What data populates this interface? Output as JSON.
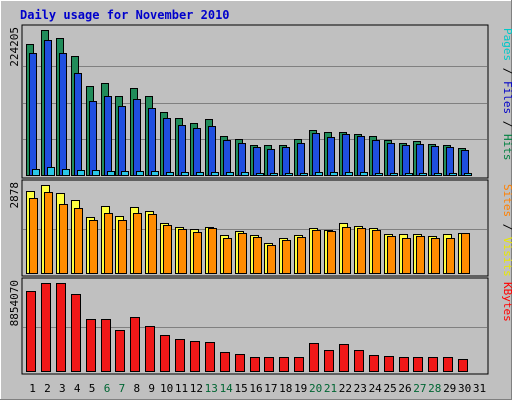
{
  "chart_data": {
    "type": "bar",
    "title": "Daily usage for November 2010",
    "categories": [
      "1",
      "2",
      "3",
      "4",
      "5",
      "6",
      "7",
      "8",
      "9",
      "10",
      "11",
      "12",
      "13",
      "14",
      "15",
      "16",
      "17",
      "18",
      "19",
      "20",
      "21",
      "22",
      "23",
      "24",
      "25",
      "26",
      "27",
      "28",
      "29",
      "30",
      "31"
    ],
    "weekend_days": [
      6,
      7,
      13,
      14,
      20,
      21,
      27,
      28
    ],
    "panels": [
      {
        "name": "hits-files-pages",
        "ymax_label": "224205",
        "ymax": 224205,
        "axis_legend": [
          {
            "text": "Pages",
            "color": "#00c8c8"
          },
          {
            "text": " / ",
            "color": "#000000"
          },
          {
            "text": "Files",
            "color": "#0000c8"
          },
          {
            "text": " / ",
            "color": "#000000"
          },
          {
            "text": "Hits",
            "color": "#008040"
          }
        ],
        "series": [
          {
            "name": "Hits",
            "color": "#218c5a",
            "values": [
              203000,
              224205,
              212000,
              184000,
              137000,
              142000,
              122000,
              135000,
              122000,
              98000,
              88000,
              80000,
              87000,
              61000,
              55000,
              47000,
              46000,
              47000,
              55000,
              70000,
              66000,
              66000,
              63000,
              61000,
              54000,
              49000,
              52000,
              48000,
              47000,
              41000,
              0
            ]
          },
          {
            "name": "Files",
            "color": "#1f4fe0",
            "values": [
              189000,
              208000,
              189000,
              158000,
              115000,
              122000,
              106000,
              117000,
              103000,
              88000,
              78000,
              72000,
              75000,
              54000,
              49000,
              44000,
              40000,
              43000,
              49000,
              65000,
              58000,
              63000,
              60000,
              54000,
              50000,
              46000,
              48000,
              45000,
              44000,
              38000,
              0
            ]
          },
          {
            "name": "Pages",
            "color": "#29c8e8",
            "values": [
              9000,
              12000,
              10000,
              8000,
              7000,
              6000,
              6000,
              6000,
              6000,
              5000,
              5000,
              4000,
              4000,
              4000,
              4000,
              3000,
              3000,
              3000,
              3000,
              4000,
              4000,
              4000,
              4000,
              3000,
              3000,
              3000,
              3000,
              3000,
              3000,
              3000,
              0
            ]
          }
        ]
      },
      {
        "name": "visits-sites",
        "ymax_label": "2878",
        "ymax": 2878,
        "axis_legend": [
          {
            "text": "Sites",
            "color": "#ff8000"
          },
          {
            "text": " / ",
            "color": "#000000"
          },
          {
            "text": "Visits",
            "color": "#e8e800"
          }
        ],
        "series": [
          {
            "name": "Visits",
            "color": "#ffff40",
            "values": [
              2680,
              2878,
              2620,
              2390,
              1820,
              2190,
              1850,
              2150,
              2040,
              1620,
              1490,
              1430,
              1510,
              1250,
              1360,
              1250,
              980,
              1130,
              1240,
              1460,
              1410,
              1640,
              1530,
              1460,
              1270,
              1270,
              1270,
              1220,
              1270,
              1320,
              0
            ]
          },
          {
            "name": "Sites",
            "color": "#ff8c00",
            "values": [
              2440,
              2640,
              2250,
              2110,
              1740,
              1950,
              1720,
              1970,
              1930,
              1560,
              1440,
              1330,
              1470,
              1140,
              1300,
              1190,
              910,
              1090,
              1180,
              1410,
              1370,
              1500,
              1460,
              1410,
              1220,
              1160,
              1210,
              1160,
              1160,
              1300,
              0
            ]
          }
        ]
      },
      {
        "name": "kbytes",
        "ymax_label": "8854070",
        "ymax": 8854070,
        "axis_legend": [
          {
            "text": "KBytes",
            "color": "#ff0000"
          }
        ],
        "series": [
          {
            "name": "KBytes",
            "color": "#f01818",
            "values": [
              8030000,
              8854070,
              8854070,
              7760000,
              5220000,
              5260000,
              4160000,
              5410000,
              4550000,
              3610000,
              3210000,
              2970000,
              2900000,
              1900000,
              1730000,
              1400000,
              1360000,
              1450000,
              1400000,
              2790000,
              2080000,
              2680000,
              2100000,
              1660000,
              1530000,
              1420000,
              1420000,
              1400000,
              1450000,
              1170000,
              0
            ]
          }
        ]
      }
    ]
  }
}
